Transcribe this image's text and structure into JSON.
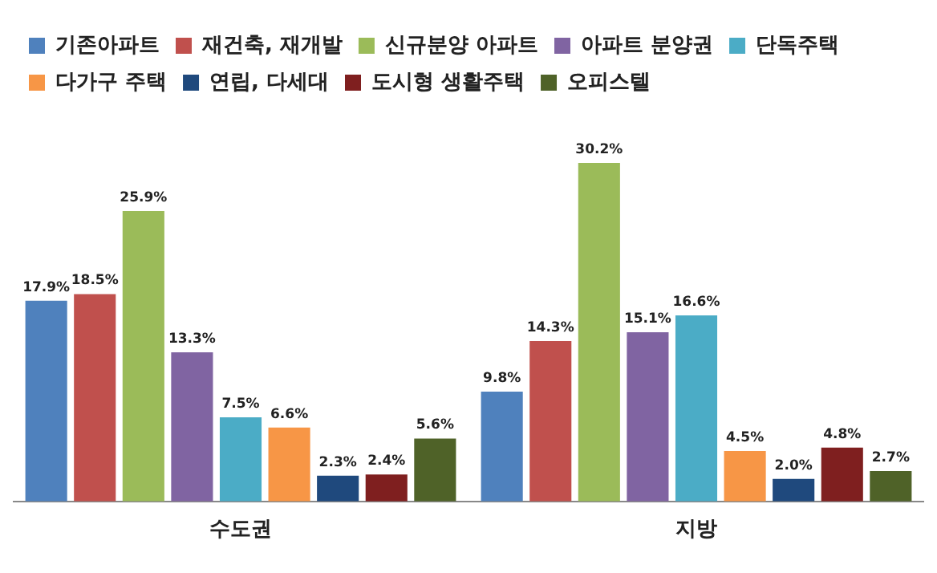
{
  "chart_data": {
    "type": "bar",
    "categories": [
      "수도권",
      "지방"
    ],
    "series": [
      {
        "name": "기존아파트",
        "color": "#4f81bd",
        "values": [
          17.9,
          9.8
        ],
        "value_labels": [
          "17.9%",
          "9.8%"
        ]
      },
      {
        "name": "재건축, 재개발",
        "color": "#c0504d",
        "values": [
          18.5,
          14.3
        ],
        "value_labels": [
          "18.5%",
          "14.3%"
        ]
      },
      {
        "name": "신규분양 아파트",
        "color": "#9bbb59",
        "values": [
          25.9,
          30.2
        ],
        "value_labels": [
          "25.9%",
          "30.2%"
        ]
      },
      {
        "name": "아파트 분양권",
        "color": "#8064a2",
        "values": [
          13.3,
          15.1
        ],
        "value_labels": [
          "13.3%",
          "15.1%"
        ]
      },
      {
        "name": "단독주택",
        "color": "#4bacc6",
        "values": [
          7.5,
          16.6
        ],
        "value_labels": [
          "7.5%",
          "16.6%"
        ]
      },
      {
        "name": "다가구 주택",
        "color": "#f79646",
        "values": [
          6.6,
          4.5
        ],
        "value_labels": [
          "6.6%",
          "4.5%"
        ]
      },
      {
        "name": "연립, 다세대",
        "color": "#1f497d",
        "values": [
          2.3,
          2.0
        ],
        "value_labels": [
          "2.3%",
          "2.0%"
        ]
      },
      {
        "name": "도시형 생활주택",
        "color": "#7f1f1f",
        "values": [
          2.4,
          4.8
        ],
        "value_labels": [
          "2.4%",
          "4.8%"
        ]
      },
      {
        "name": "오피스텔",
        "color": "#4f6228",
        "values": [
          5.6,
          2.7
        ],
        "value_labels": [
          "5.6%",
          "2.7%"
        ]
      }
    ],
    "legend": "top",
    "grid": false,
    "tick_labels": "x"
  }
}
